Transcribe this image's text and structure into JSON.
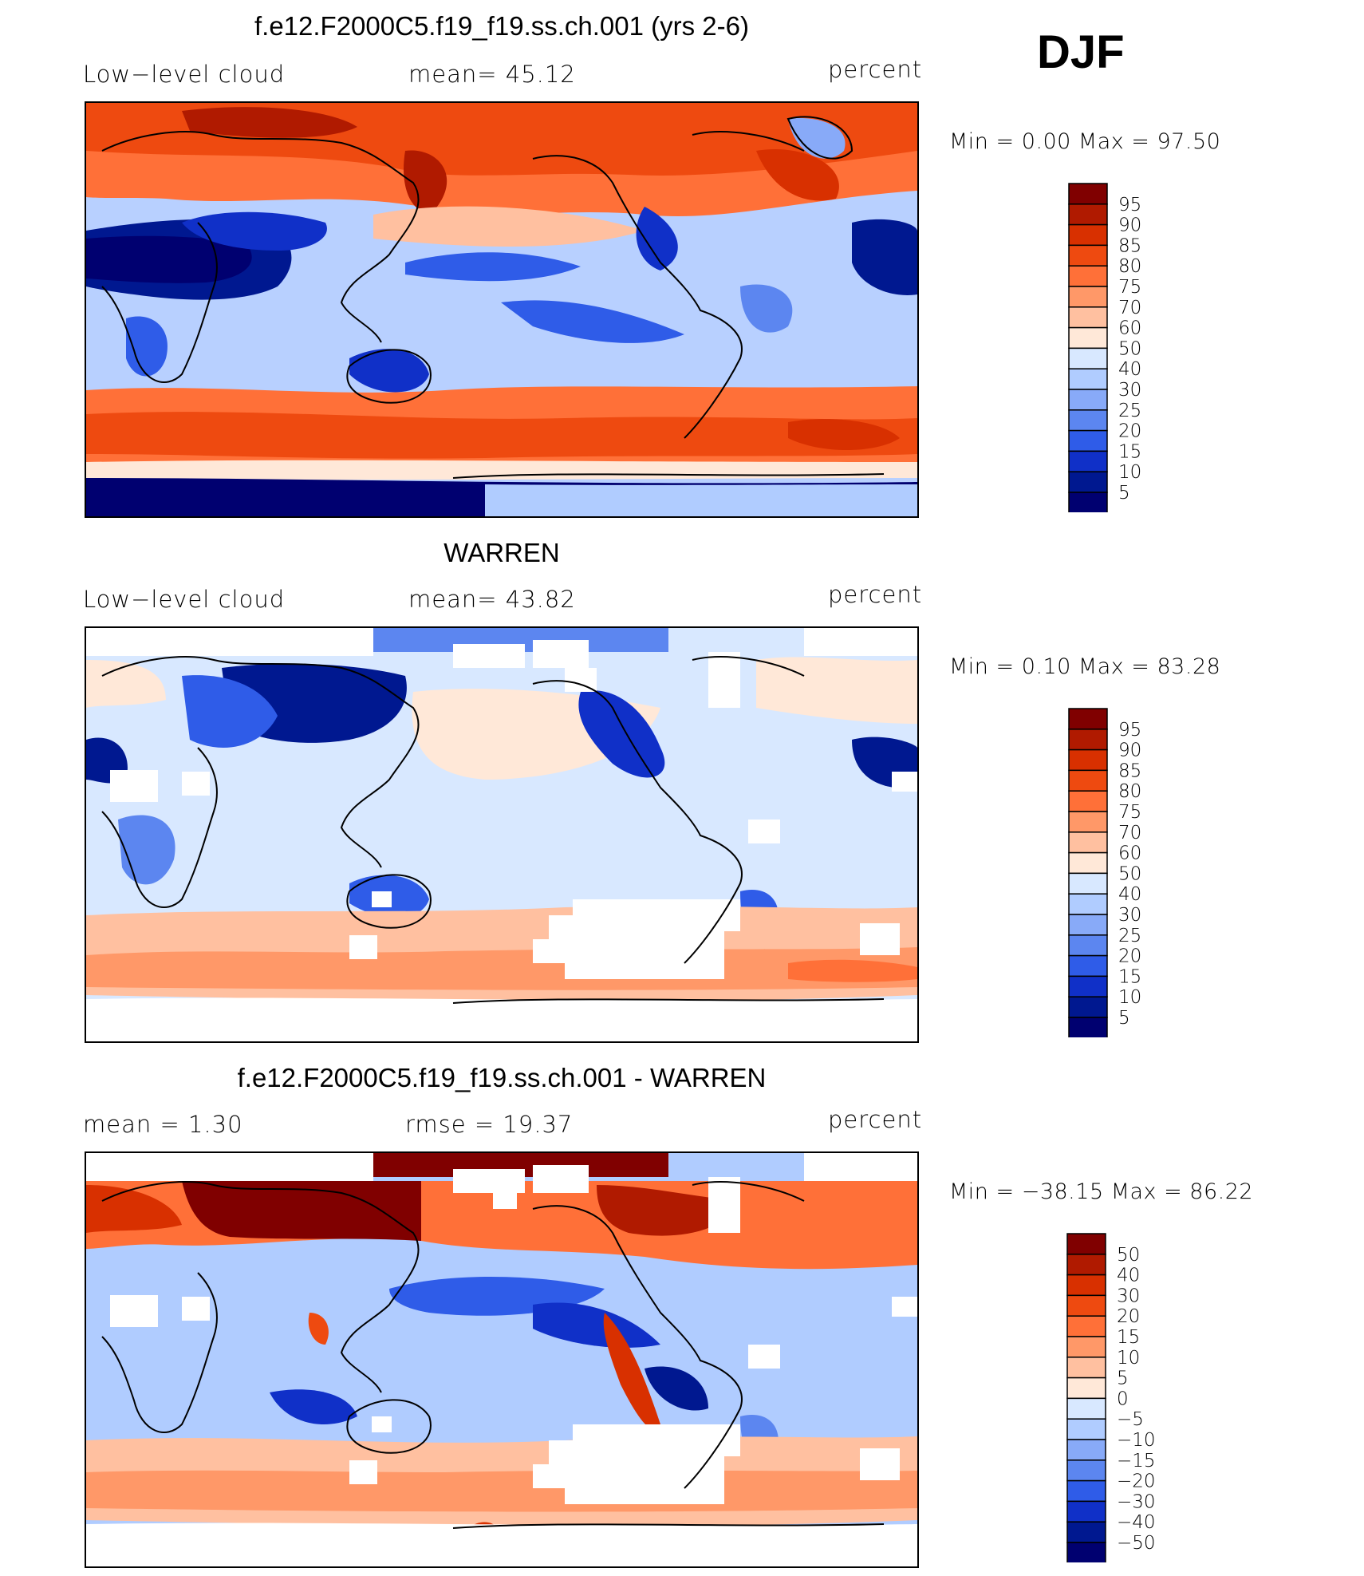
{
  "season": "DJF",
  "panels": [
    {
      "title": "f.e12.F2000C5.f19_f19.ss.ch.001 (yrs 2-6)",
      "left_label": "Low−level cloud",
      "center_label": "mean=   45.12",
      "units": "percent",
      "minmax": "Min =     0.00 Max =    97.50"
    },
    {
      "title": "WARREN",
      "left_label": "Low−level cloud",
      "center_label": "mean=   43.82",
      "units": "percent",
      "minmax": "Min =     0.10 Max =    83.28"
    },
    {
      "title": "f.e12.F2000C5.f19_f19.ss.ch.001 - WARREN",
      "left_label": "mean =     1.30",
      "center_label": "rmse =    19.37",
      "units": "percent",
      "minmax": "Min = −38.15 Max =    86.22"
    }
  ],
  "chart_data": [
    {
      "type": "heatmap",
      "title": "f.e12.F2000C5.f19_f19.ss.ch.001 (yrs 2-6)",
      "variable": "Low-level cloud",
      "units": "percent",
      "mean": 45.12,
      "min": 0.0,
      "max": 97.5,
      "colorbar_levels": [
        "95",
        "90",
        "85",
        "80",
        "75",
        "70",
        "60",
        "50",
        "40",
        "30",
        "25",
        "20",
        "15",
        "10",
        "5"
      ]
    },
    {
      "type": "heatmap",
      "title": "WARREN",
      "variable": "Low-level cloud",
      "units": "percent",
      "mean": 43.82,
      "min": 0.1,
      "max": 83.28,
      "colorbar_levels": [
        "95",
        "90",
        "85",
        "80",
        "75",
        "70",
        "60",
        "50",
        "40",
        "30",
        "25",
        "20",
        "15",
        "10",
        "5"
      ]
    },
    {
      "type": "heatmap",
      "title": "f.e12.F2000C5.f19_f19.ss.ch.001 - WARREN",
      "units": "percent",
      "mean": 1.3,
      "rmse": 19.37,
      "min": -38.15,
      "max": 86.22,
      "colorbar_levels": [
        "50",
        "40",
        "30",
        "20",
        "15",
        "10",
        "5",
        "0",
        "−5",
        "−10",
        "−15",
        "−20",
        "−30",
        "−40",
        "−50"
      ]
    }
  ],
  "colors": {
    "scale": [
      "#800000",
      "#b01a00",
      "#d83000",
      "#ee4a10",
      "#ff7038",
      "#ff9868",
      "#ffc0a0",
      "#ffe8d8",
      "#d8e8ff",
      "#b0ccff",
      "#88aaf8",
      "#5c86f0",
      "#2f5ce8",
      "#1030c8",
      "#001890",
      "#000070"
    ]
  }
}
